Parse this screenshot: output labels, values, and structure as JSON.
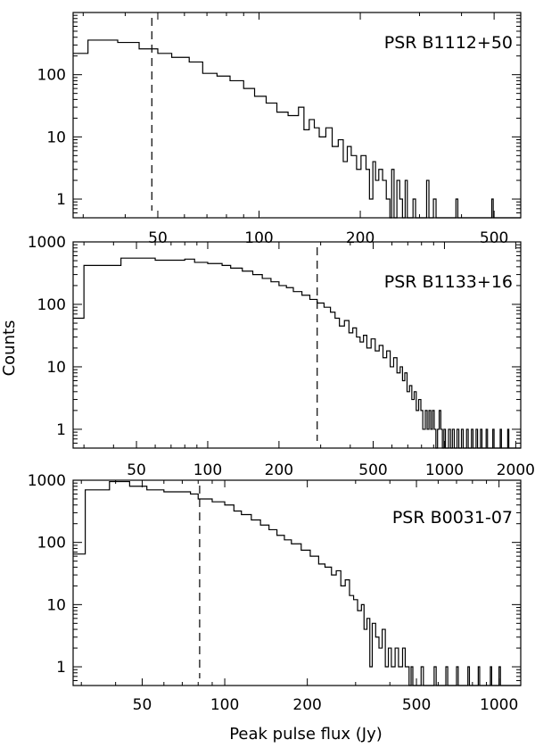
{
  "figure": {
    "ylabel": "Counts",
    "xlabel": "Peak pulse flux (Jy)"
  },
  "chart_data": [
    {
      "type": "histogram",
      "label": "PSR B1112+50",
      "xscale": "log",
      "yscale": "log",
      "xlim": [
        28,
        600
      ],
      "ylim": [
        0.5,
        1000
      ],
      "xticks": [
        50,
        100,
        200,
        500
      ],
      "xtick_labels": [
        "50",
        "100",
        "200",
        "500"
      ],
      "xtick_label_position": "bottom",
      "yticks": [
        1,
        10,
        100
      ],
      "ytick_labels": [
        "1",
        "10",
        "100"
      ],
      "threshold_x": 48,
      "bins": [
        [
          28,
          220
        ],
        [
          31,
          360
        ],
        [
          38,
          330
        ],
        [
          44,
          260
        ],
        [
          50,
          220
        ],
        [
          55,
          190
        ],
        [
          62,
          160
        ],
        [
          68,
          105
        ],
        [
          75,
          95
        ],
        [
          82,
          80
        ],
        [
          90,
          60
        ],
        [
          97,
          45
        ],
        [
          105,
          35
        ],
        [
          113,
          25
        ],
        [
          122,
          22
        ],
        [
          131,
          30
        ],
        [
          136,
          13
        ],
        [
          141,
          19
        ],
        [
          146,
          14
        ],
        [
          151,
          10
        ],
        [
          158,
          14
        ],
        [
          165,
          7
        ],
        [
          172,
          9
        ],
        [
          178,
          4
        ],
        [
          183,
          7
        ],
        [
          188,
          5
        ],
        [
          195,
          3
        ],
        [
          201,
          5
        ],
        [
          208,
          3
        ],
        [
          213,
          1
        ],
        [
          218,
          4
        ],
        [
          222,
          2
        ],
        [
          227,
          3
        ],
        [
          233,
          2
        ],
        [
          239,
          1
        ],
        [
          245,
          0.5
        ],
        [
          248,
          3
        ],
        [
          252,
          0.5
        ],
        [
          257,
          2
        ],
        [
          262,
          1
        ],
        [
          267,
          0.5
        ],
        [
          272,
          2
        ],
        [
          276,
          0.5
        ],
        [
          287,
          1
        ],
        [
          292,
          0.5
        ],
        [
          315,
          2
        ],
        [
          320,
          0.5
        ],
        [
          330,
          1
        ],
        [
          336,
          0.5
        ],
        [
          385,
          1
        ],
        [
          390,
          0.5
        ],
        [
          492,
          1
        ],
        [
          497,
          0.5
        ],
        [
          600,
          0.5
        ]
      ]
    },
    {
      "type": "histogram",
      "label": "PSR B1133+16",
      "xscale": "log",
      "yscale": "log",
      "xlim": [
        27,
        2100
      ],
      "ylim": [
        0.5,
        1000
      ],
      "xticks": [
        50,
        100,
        200,
        500,
        1000,
        2000
      ],
      "xtick_labels": [
        "50",
        "100",
        "200",
        "500",
        "1000",
        "2000"
      ],
      "xtick_label_position": "bottom",
      "yticks": [
        1,
        10,
        100,
        1000
      ],
      "ytick_labels": [
        "1",
        "10",
        "100",
        "1000"
      ],
      "threshold_x": 290,
      "bins": [
        [
          27,
          60
        ],
        [
          30,
          420
        ],
        [
          43,
          550
        ],
        [
          60,
          510
        ],
        [
          80,
          530
        ],
        [
          88,
          470
        ],
        [
          100,
          450
        ],
        [
          115,
          420
        ],
        [
          125,
          380
        ],
        [
          140,
          340
        ],
        [
          155,
          300
        ],
        [
          170,
          260
        ],
        [
          185,
          230
        ],
        [
          200,
          200
        ],
        [
          215,
          185
        ],
        [
          230,
          160
        ],
        [
          250,
          140
        ],
        [
          270,
          120
        ],
        [
          290,
          105
        ],
        [
          310,
          90
        ],
        [
          330,
          75
        ],
        [
          345,
          60
        ],
        [
          360,
          45
        ],
        [
          378,
          55
        ],
        [
          395,
          35
        ],
        [
          410,
          42
        ],
        [
          425,
          30
        ],
        [
          440,
          25
        ],
        [
          455,
          32
        ],
        [
          470,
          20
        ],
        [
          490,
          28
        ],
        [
          510,
          18
        ],
        [
          530,
          22
        ],
        [
          550,
          14
        ],
        [
          570,
          18
        ],
        [
          590,
          10
        ],
        [
          610,
          14
        ],
        [
          630,
          8
        ],
        [
          650,
          10
        ],
        [
          665,
          6
        ],
        [
          680,
          8
        ],
        [
          695,
          4
        ],
        [
          712,
          5
        ],
        [
          728,
          3
        ],
        [
          745,
          4
        ],
        [
          760,
          2
        ],
        [
          778,
          3
        ],
        [
          795,
          2
        ],
        [
          810,
          1
        ],
        [
          830,
          2
        ],
        [
          845,
          1
        ],
        [
          860,
          2
        ],
        [
          875,
          1
        ],
        [
          890,
          2
        ],
        [
          905,
          1
        ],
        [
          920,
          0.5
        ],
        [
          935,
          1
        ],
        [
          950,
          2
        ],
        [
          965,
          1
        ],
        [
          980,
          0.5
        ],
        [
          995,
          1
        ],
        [
          1010,
          0.5
        ],
        [
          1040,
          1
        ],
        [
          1060,
          0.5
        ],
        [
          1080,
          1
        ],
        [
          1100,
          0.5
        ],
        [
          1130,
          1
        ],
        [
          1150,
          0.5
        ],
        [
          1180,
          1
        ],
        [
          1200,
          0.5
        ],
        [
          1240,
          1
        ],
        [
          1260,
          0.5
        ],
        [
          1300,
          1
        ],
        [
          1320,
          0.5
        ],
        [
          1360,
          1
        ],
        [
          1380,
          0.5
        ],
        [
          1420,
          1
        ],
        [
          1440,
          0.5
        ],
        [
          1500,
          1
        ],
        [
          1520,
          0.5
        ],
        [
          1600,
          1
        ],
        [
          1620,
          0.5
        ],
        [
          1720,
          1
        ],
        [
          1740,
          0.5
        ],
        [
          1850,
          1
        ],
        [
          1870,
          0.5
        ],
        [
          2100,
          0.5
        ]
      ]
    },
    {
      "type": "histogram",
      "label": "PSR B0031-07",
      "xscale": "log",
      "yscale": "log",
      "xlim": [
        28,
        1200
      ],
      "ylim": [
        0.5,
        1000
      ],
      "xticks": [
        50,
        100,
        200,
        500,
        1000
      ],
      "xtick_labels": [
        "50",
        "100",
        "200",
        "500",
        "1000"
      ],
      "xtick_label_position": "bottom",
      "yticks": [
        1,
        10,
        100,
        1000
      ],
      "ytick_labels": [
        "1",
        "10",
        "100",
        "1000"
      ],
      "threshold_x": 81,
      "bins": [
        [
          28,
          65
        ],
        [
          31,
          700
        ],
        [
          38,
          950
        ],
        [
          45,
          800
        ],
        [
          52,
          700
        ],
        [
          60,
          650
        ],
        [
          75,
          600
        ],
        [
          80,
          500
        ],
        [
          90,
          450
        ],
        [
          100,
          400
        ],
        [
          108,
          320
        ],
        [
          115,
          280
        ],
        [
          125,
          230
        ],
        [
          135,
          190
        ],
        [
          145,
          160
        ],
        [
          155,
          130
        ],
        [
          165,
          110
        ],
        [
          175,
          95
        ],
        [
          190,
          75
        ],
        [
          205,
          60
        ],
        [
          220,
          45
        ],
        [
          232,
          40
        ],
        [
          245,
          30
        ],
        [
          255,
          35
        ],
        [
          265,
          20
        ],
        [
          275,
          25
        ],
        [
          285,
          14
        ],
        [
          295,
          12
        ],
        [
          305,
          8
        ],
        [
          315,
          10
        ],
        [
          322,
          4
        ],
        [
          330,
          6
        ],
        [
          338,
          1
        ],
        [
          345,
          5
        ],
        [
          355,
          3
        ],
        [
          365,
          2
        ],
        [
          375,
          4
        ],
        [
          385,
          1
        ],
        [
          395,
          2
        ],
        [
          405,
          1
        ],
        [
          418,
          2
        ],
        [
          430,
          1
        ],
        [
          445,
          2
        ],
        [
          455,
          1
        ],
        [
          470,
          0.5
        ],
        [
          478,
          1
        ],
        [
          485,
          0.5
        ],
        [
          520,
          1
        ],
        [
          530,
          0.5
        ],
        [
          580,
          1
        ],
        [
          590,
          0.5
        ],
        [
          640,
          1
        ],
        [
          650,
          0.5
        ],
        [
          700,
          1
        ],
        [
          710,
          0.5
        ],
        [
          770,
          1
        ],
        [
          780,
          0.5
        ],
        [
          840,
          1
        ],
        [
          850,
          0.5
        ],
        [
          930,
          1
        ],
        [
          940,
          0.5
        ],
        [
          1000,
          1
        ],
        [
          1012,
          0.5
        ],
        [
          1200,
          0.5
        ]
      ]
    }
  ]
}
